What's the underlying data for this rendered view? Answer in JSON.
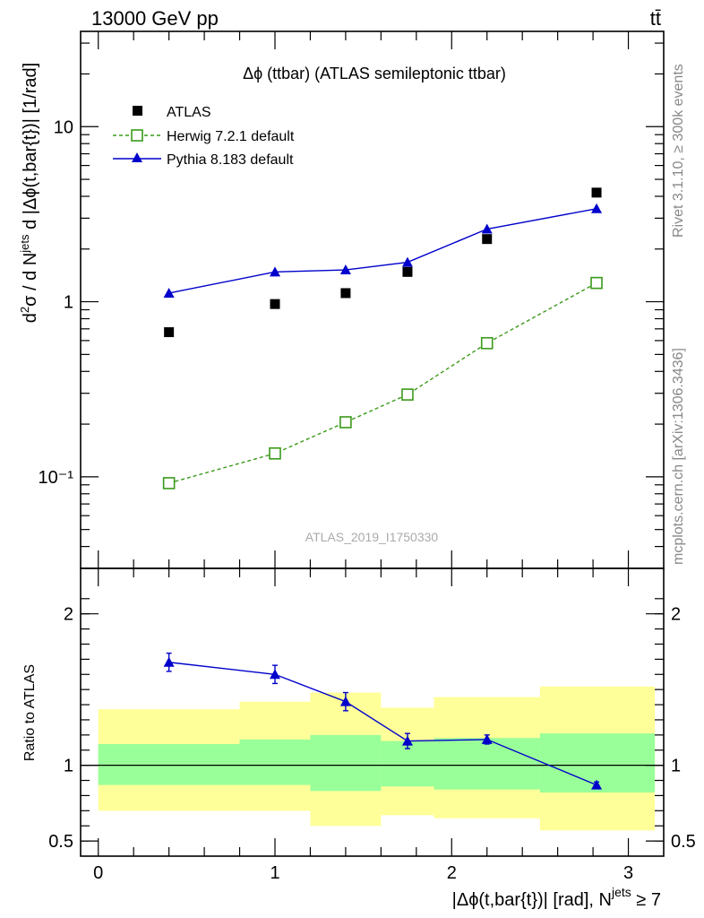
{
  "header": {
    "left": "13000 GeV pp",
    "right": "tt̄",
    "side_top": "Rivet 3.1.10, ≥ 300k events",
    "side_bottom": "mcplots.cern.ch [arXiv:1306.3436]",
    "watermark": "ATLAS_2019_I1750330"
  },
  "chart_data": {
    "type": "scatter",
    "title": "Δϕ (ttbar) (ATLAS semileptonic ttbar)",
    "xlabel": "|Δϕ(t,bar{t})| [rad], N",
    "xlabel_sup": "jets",
    "xlabel_suffix": " ≥ 7",
    "ylabel": "d²σ / d N^jets d |Δϕ(t,bar{t})| [1/rad]",
    "ratio_ylabel": "Ratio to ATLAS",
    "xlim": [
      -0.1,
      3.2
    ],
    "ylim": [
      0.03,
      35
    ],
    "yscale": "log",
    "ratio_ylim": [
      0.4,
      2.3
    ],
    "x_ticks": [
      "0",
      "1",
      "2",
      "3"
    ],
    "y_ticks_main": [
      "10⁻¹",
      "1",
      "10"
    ],
    "y_ticks_ratio": [
      "0.5",
      "1",
      "2"
    ],
    "legend": [
      "ATLAS",
      "Herwig 7.2.1 default",
      "Pythia 8.183 default"
    ],
    "colors": {
      "data": "#000000",
      "herwig": "#3a9a1a",
      "pythia": "#0000cc",
      "band_inner": "#99ff99",
      "band_outer": "#ffff99"
    },
    "series": [
      {
        "name": "ATLAS",
        "x": [
          0.4,
          1.0,
          1.4,
          1.75,
          2.2,
          2.82
        ],
        "values": [
          0.67,
          0.97,
          1.12,
          1.48,
          2.28,
          4.2
        ]
      },
      {
        "name": "Herwig 7.2.1 default",
        "x": [
          0.4,
          1.0,
          1.4,
          1.75,
          2.2,
          2.82
        ],
        "values": [
          0.092,
          0.136,
          0.205,
          0.295,
          0.58,
          1.28
        ]
      },
      {
        "name": "Pythia 8.183 default",
        "x": [
          0.4,
          1.0,
          1.4,
          1.75,
          2.2,
          2.82
        ],
        "values": [
          1.12,
          1.48,
          1.52,
          1.68,
          2.6,
          3.4
        ]
      }
    ],
    "ratio": {
      "pythia": [
        1.68,
        1.6,
        1.42,
        1.16,
        1.17,
        0.87
      ],
      "pythia_err": [
        0.06,
        0.06,
        0.06,
        0.05,
        0.03,
        0.02
      ],
      "bins": [
        {
          "lo": 0.0,
          "hi": 0.8,
          "inner": [
            0.87,
            1.14
          ],
          "outer": [
            0.7,
            1.37
          ]
        },
        {
          "lo": 0.8,
          "hi": 1.2,
          "inner": [
            0.87,
            1.17
          ],
          "outer": [
            0.7,
            1.42
          ]
        },
        {
          "lo": 1.2,
          "hi": 1.6,
          "inner": [
            0.83,
            1.2
          ],
          "outer": [
            0.6,
            1.48
          ]
        },
        {
          "lo": 1.6,
          "hi": 1.9,
          "inner": [
            0.86,
            1.16
          ],
          "outer": [
            0.67,
            1.38
          ]
        },
        {
          "lo": 1.9,
          "hi": 2.5,
          "inner": [
            0.84,
            1.18
          ],
          "outer": [
            0.65,
            1.45
          ]
        },
        {
          "lo": 2.5,
          "hi": 3.15,
          "inner": [
            0.82,
            1.21
          ],
          "outer": [
            0.57,
            1.52
          ]
        }
      ]
    }
  }
}
